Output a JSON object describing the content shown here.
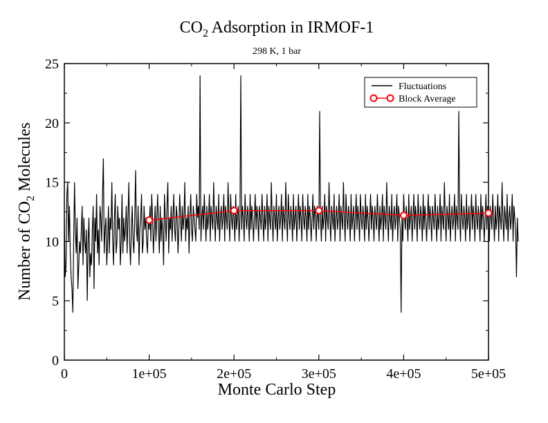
{
  "chart_data": {
    "type": "line",
    "title_main": "CO",
    "title_sub": "2",
    "title_rest": " Adsorption in IRMOF-1",
    "subtitle": "298 K, 1 bar",
    "xlabel": "Monte Carlo Step",
    "ylabel_main": "Number of CO",
    "ylabel_sub": "2",
    "ylabel_rest": " Molecules",
    "xlim": [
      0,
      500000
    ],
    "ylim": [
      0,
      25
    ],
    "x_ticks": [
      0,
      100000,
      200000,
      300000,
      400000,
      500000
    ],
    "x_tick_labels": [
      "0",
      "1e+05",
      "2e+05",
      "3e+05",
      "4e+05",
      "5e+05"
    ],
    "y_ticks": [
      0,
      5,
      10,
      15,
      20,
      25
    ],
    "y_tick_labels": [
      "0",
      "5",
      "10",
      "15",
      "20",
      "25"
    ],
    "grid": false,
    "legend_position": "top-right",
    "series": [
      {
        "name": "Fluctuations",
        "color": "#000000",
        "style": "line",
        "x_start": 0,
        "x_step": 1000,
        "values": [
          12,
          7,
          8,
          14,
          15,
          10,
          13,
          9,
          7,
          6,
          4,
          10,
          15,
          11,
          9,
          12,
          6,
          8,
          10,
          9,
          11,
          13,
          8,
          12,
          10,
          9,
          11,
          5,
          10,
          12,
          7,
          9,
          8,
          11,
          13,
          6,
          12,
          10,
          14,
          9,
          11,
          8,
          13,
          12,
          10,
          14,
          17,
          9,
          11,
          12,
          8,
          10,
          13,
          9,
          12,
          11,
          15,
          10,
          8,
          12,
          14,
          9,
          10,
          13,
          11,
          12,
          8,
          10,
          14,
          9,
          12,
          10,
          11,
          13,
          9,
          12,
          15,
          10,
          8,
          11,
          13,
          10,
          9,
          12,
          16,
          11,
          10,
          13,
          8,
          11,
          12,
          14,
          9,
          10,
          13,
          11,
          12,
          10,
          9,
          12,
          11,
          13,
          10,
          14,
          12,
          9,
          11,
          13,
          10,
          12,
          14,
          11,
          9,
          13,
          10,
          12,
          11,
          8,
          14,
          12,
          10,
          13,
          15,
          9,
          12,
          11,
          13,
          10,
          12,
          14,
          11,
          10,
          13,
          12,
          9,
          11,
          14,
          12,
          10,
          13,
          11,
          12,
          15,
          10,
          12,
          11,
          13,
          9,
          12,
          14,
          11,
          10,
          13,
          12,
          11,
          10,
          14,
          12,
          13,
          11,
          24,
          10,
          12,
          13,
          11,
          14,
          12,
          10,
          13,
          11,
          12,
          14,
          10,
          13,
          12,
          11,
          15,
          12,
          10,
          13,
          12,
          11,
          14,
          10,
          12,
          13,
          11,
          12,
          14,
          10,
          13,
          12,
          11,
          15,
          12,
          10,
          14,
          12,
          11,
          13,
          12,
          10,
          14,
          11,
          12,
          13,
          10,
          12,
          24,
          11,
          13,
          12,
          10,
          14,
          12,
          11,
          13,
          12,
          10,
          14,
          11,
          13,
          12,
          10,
          12,
          14,
          11,
          13,
          12,
          10,
          13,
          12,
          11,
          14,
          12,
          10,
          13,
          11,
          12,
          14,
          10,
          13,
          12,
          11,
          15,
          12,
          10,
          13,
          12,
          11,
          14,
          10,
          12,
          13,
          11,
          12,
          14,
          10,
          13,
          12,
          11,
          15,
          12,
          10,
          14,
          12,
          11,
          13,
          12,
          10,
          14,
          11,
          12,
          13,
          10,
          12,
          14,
          11,
          13,
          12,
          10,
          14,
          12,
          11,
          13,
          12,
          10,
          14,
          11,
          13,
          12,
          10,
          12,
          14,
          11,
          13,
          12,
          10,
          13,
          12,
          11,
          21,
          12,
          10,
          13,
          11,
          12,
          14,
          10,
          13,
          12,
          11,
          15,
          12,
          10,
          13,
          12,
          11,
          14,
          10,
          12,
          13,
          11,
          12,
          14,
          10,
          13,
          12,
          11,
          15,
          12,
          10,
          14,
          12,
          11,
          13,
          12,
          10,
          14,
          11,
          12,
          13,
          10,
          12,
          14,
          11,
          13,
          12,
          10,
          14,
          12,
          11,
          13,
          12,
          10,
          14,
          11,
          13,
          12,
          10,
          12,
          14,
          11,
          13,
          12,
          10,
          13,
          12,
          11,
          14,
          12,
          10,
          13,
          11,
          12,
          14,
          10,
          13,
          12,
          11,
          15,
          12,
          10,
          13,
          12,
          11,
          14,
          10,
          12,
          13,
          11,
          12,
          14,
          10,
          13,
          12,
          11,
          4,
          12,
          10,
          14,
          12,
          11,
          13,
          12,
          10,
          14,
          11,
          12,
          13,
          10,
          12,
          14,
          11,
          13,
          12,
          10,
          14,
          12,
          11,
          13,
          12,
          10,
          14,
          11,
          13,
          12,
          10,
          12,
          14,
          11,
          13,
          12,
          10,
          13,
          12,
          11,
          14,
          12,
          10,
          13,
          11,
          12,
          14,
          10,
          13,
          12,
          11,
          15,
          12,
          10,
          13,
          12,
          11,
          14,
          10,
          12,
          13,
          11,
          12,
          14,
          10,
          13,
          12,
          11,
          21,
          12,
          10,
          14,
          12,
          11,
          13,
          12,
          10,
          14,
          11,
          12,
          13,
          10,
          12,
          14,
          11,
          13,
          12,
          10,
          14,
          12,
          11,
          13,
          12,
          10,
          14,
          11,
          13,
          12,
          10,
          12,
          14,
          11,
          13,
          12,
          10,
          13,
          12,
          11,
          14,
          12,
          10,
          13,
          11,
          12,
          14,
          10,
          13,
          12,
          11,
          15,
          12,
          10,
          13,
          12,
          11,
          14,
          10,
          12,
          13,
          11,
          12,
          14,
          10,
          13,
          12,
          11,
          7,
          12,
          10
        ]
      },
      {
        "name": "Block Average",
        "color": "#ff0000",
        "style": "line-with-open-circles",
        "x": [
          100000,
          200000,
          300000,
          400000,
          500000
        ],
        "values": [
          11.8,
          12.6,
          12.6,
          12.2,
          12.4
        ]
      }
    ]
  }
}
